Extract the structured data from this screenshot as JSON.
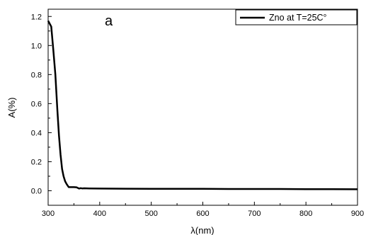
{
  "chart_data": {
    "type": "line",
    "panel_label": "a",
    "xlabel": "λ(nm)",
    "ylabel": "A(%)",
    "xlim": [
      300,
      900
    ],
    "ylim": [
      -0.1,
      1.25
    ],
    "xticks": [
      300,
      400,
      500,
      600,
      700,
      800,
      900
    ],
    "yticks": [
      0.0,
      0.2,
      0.4,
      0.6,
      0.8,
      1.0,
      1.2
    ],
    "ytick_labels": [
      "0.0",
      "0.2",
      "0.4",
      "0.6",
      "0.8",
      "1.0",
      "1.2"
    ],
    "grid": false,
    "legend_position": "top-right",
    "series": [
      {
        "name": "Zno at T=25C°",
        "color": "#000000",
        "x": [
          300,
          303,
          306,
          310,
          314,
          318,
          321,
          324,
          327,
          330,
          333,
          336,
          340,
          345,
          350,
          355,
          360,
          363,
          366,
          370,
          380,
          400,
          450,
          500,
          550,
          600,
          650,
          700,
          750,
          800,
          850,
          900
        ],
        "y": [
          1.17,
          1.15,
          1.13,
          0.97,
          0.8,
          0.55,
          0.38,
          0.25,
          0.15,
          0.1,
          0.065,
          0.045,
          0.025,
          0.025,
          0.025,
          0.024,
          0.015,
          0.018,
          0.016,
          0.017,
          0.016,
          0.015,
          0.014,
          0.013,
          0.013,
          0.013,
          0.012,
          0.012,
          0.012,
          0.011,
          0.011,
          0.01
        ]
      }
    ]
  }
}
